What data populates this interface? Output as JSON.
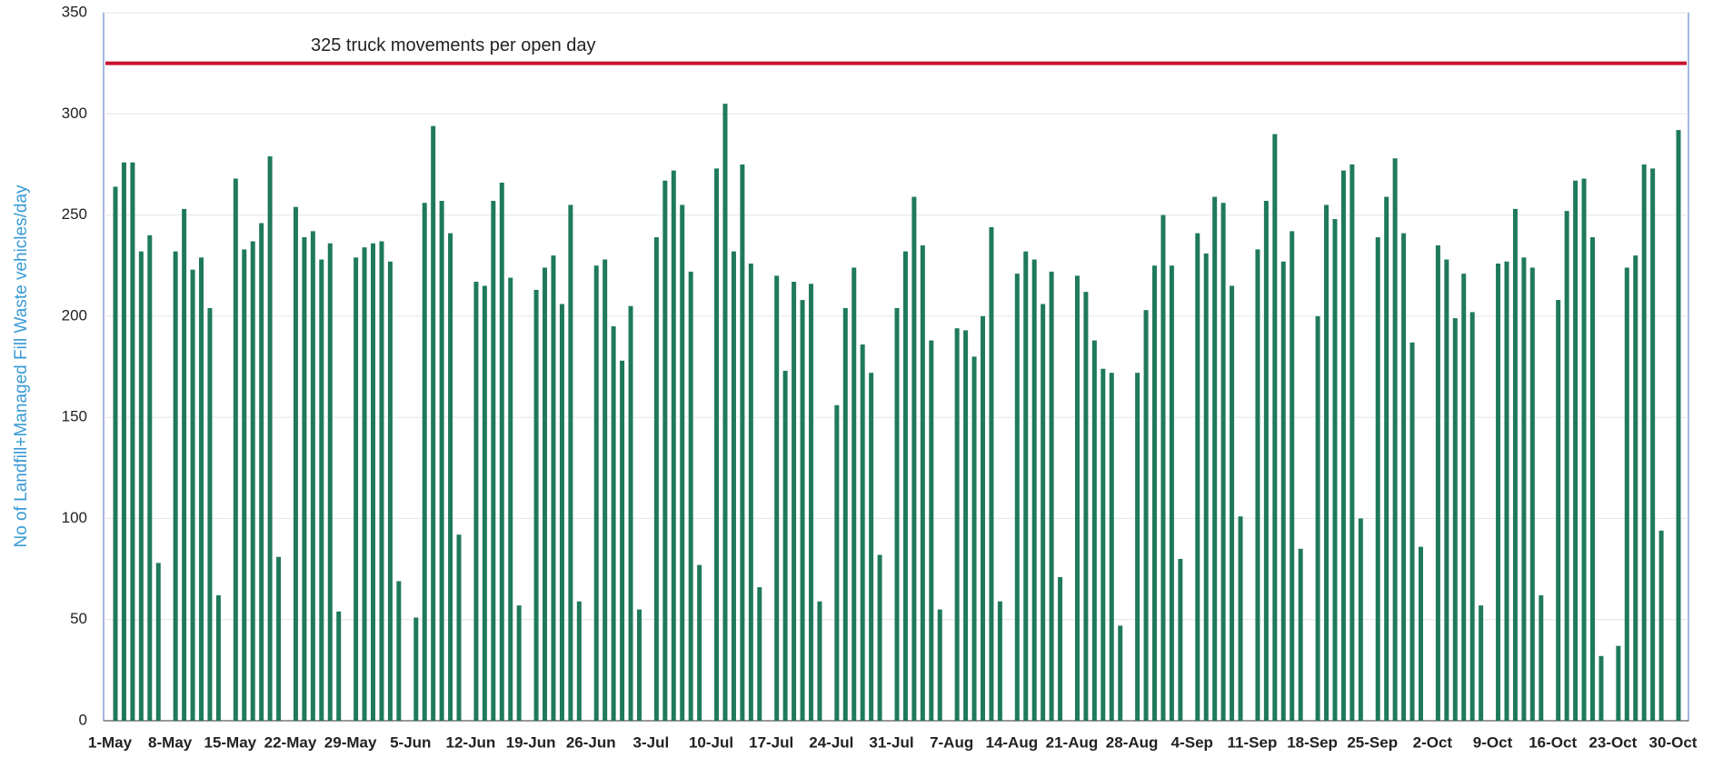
{
  "chart_data": {
    "type": "bar",
    "y_label": "No of Landfill+Managed Fill Waste  vehicles/day",
    "categories": [
      "1-May",
      null,
      null,
      null,
      null,
      null,
      null,
      "8-May",
      null,
      null,
      null,
      null,
      null,
      null,
      "15-May",
      null,
      null,
      null,
      null,
      null,
      null,
      "22-May",
      null,
      null,
      null,
      null,
      null,
      null,
      "29-May",
      null,
      null,
      null,
      null,
      null,
      null,
      "5-Jun",
      null,
      null,
      null,
      null,
      null,
      null,
      "12-Jun",
      null,
      null,
      null,
      null,
      null,
      null,
      "19-Jun",
      null,
      null,
      null,
      null,
      null,
      null,
      "26-Jun",
      null,
      null,
      null,
      null,
      null,
      null,
      "3-Jul",
      null,
      null,
      null,
      null,
      null,
      null,
      "10-Jul",
      null,
      null,
      null,
      null,
      null,
      null,
      "17-Jul",
      null,
      null,
      null,
      null,
      null,
      null,
      "24-Jul",
      null,
      null,
      null,
      null,
      null,
      null,
      "31-Jul",
      null,
      null,
      null,
      null,
      null,
      null,
      "7-Aug",
      null,
      null,
      null,
      null,
      null,
      null,
      "14-Aug",
      null,
      null,
      null,
      null,
      null,
      null,
      "21-Aug",
      null,
      null,
      null,
      null,
      null,
      null,
      "28-Aug",
      null,
      null,
      null,
      null,
      null,
      null,
      "4-Sep",
      null,
      null,
      null,
      null,
      null,
      null,
      "11-Sep",
      null,
      null,
      null,
      null,
      null,
      null,
      "18-Sep",
      null,
      null,
      null,
      null,
      null,
      null,
      "25-Sep",
      null,
      null,
      null,
      null,
      null,
      null,
      "2-Oct",
      null,
      null,
      null,
      null,
      null,
      null,
      "9-Oct",
      null,
      null,
      null,
      null,
      null,
      null,
      "16-Oct",
      null,
      null,
      null,
      null,
      null,
      null,
      "23-Oct",
      null,
      null,
      null,
      null,
      null,
      null,
      "30-Oct"
    ],
    "values": [
      264,
      276,
      276,
      232,
      240,
      78,
      null,
      232,
      253,
      223,
      229,
      204,
      62,
      null,
      268,
      233,
      237,
      246,
      279,
      81,
      null,
      254,
      239,
      242,
      228,
      236,
      54,
      null,
      229,
      234,
      236,
      237,
      227,
      69,
      null,
      51,
      256,
      294,
      257,
      241,
      92,
      null,
      217,
      215,
      257,
      266,
      219,
      57,
      null,
      213,
      224,
      230,
      206,
      255,
      59,
      null,
      225,
      228,
      195,
      178,
      205,
      55,
      null,
      239,
      267,
      272,
      255,
      222,
      77,
      null,
      273,
      305,
      232,
      275,
      226,
      66,
      null,
      220,
      173,
      217,
      208,
      216,
      59,
      null,
      156,
      204,
      224,
      186,
      172,
      82,
      null,
      204,
      232,
      259,
      235,
      188,
      55,
      null,
      194,
      193,
      180,
      200,
      244,
      59,
      null,
      221,
      232,
      228,
      206,
      222,
      71,
      null,
      220,
      212,
      188,
      174,
      172,
      47,
      null,
      172,
      203,
      225,
      250,
      225,
      80,
      null,
      241,
      231,
      259,
      256,
      215,
      101,
      null,
      233,
      257,
      290,
      227,
      242,
      85,
      null,
      200,
      255,
      248,
      272,
      275,
      100,
      null,
      239,
      259,
      278,
      241,
      187,
      86,
      null,
      235,
      228,
      199,
      221,
      202,
      57,
      null,
      226,
      227,
      253,
      229,
      224,
      62,
      null,
      208,
      252,
      267,
      268,
      239,
      32,
      null,
      37,
      224,
      230,
      275,
      273,
      94,
      null,
      292
    ],
    "color": "#1f7a5c",
    "ylim": [
      0,
      350
    ],
    "yticks": [
      0,
      50,
      100,
      150,
      200,
      250,
      300,
      350
    ],
    "grid": true,
    "reference_line": {
      "value": 325,
      "label": "325 truck movements per open day",
      "color": "#c8102e"
    }
  }
}
